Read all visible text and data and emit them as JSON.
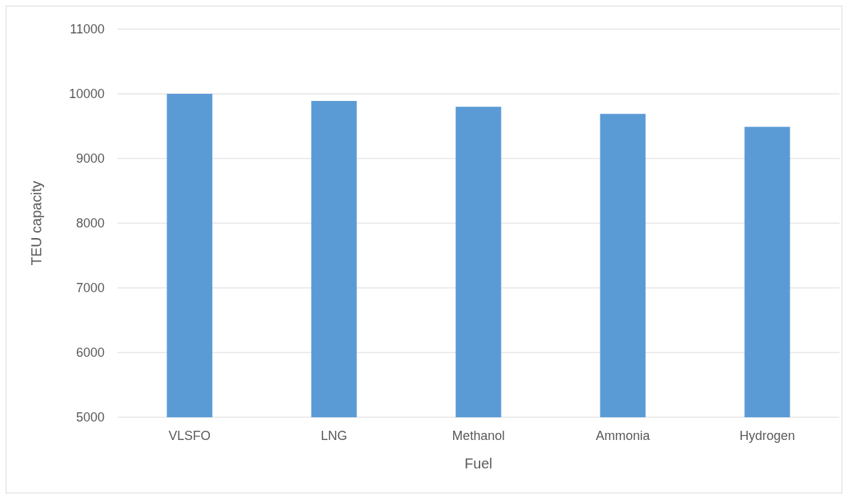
{
  "chart_data": {
    "type": "bar",
    "xlabel": "Fuel",
    "ylabel": "TEU capacity",
    "categories": [
      "VLSFO",
      "LNG",
      "Methanol",
      "Ammonia",
      "Hydrogen"
    ],
    "values": [
      10000,
      9890,
      9800,
      9690,
      9490
    ],
    "color": "#5b9bd5",
    "ylim": [
      5000,
      11000
    ],
    "yticks": [
      5000,
      6000,
      7000,
      8000,
      9000,
      10000,
      11000
    ],
    "grid": "y"
  }
}
